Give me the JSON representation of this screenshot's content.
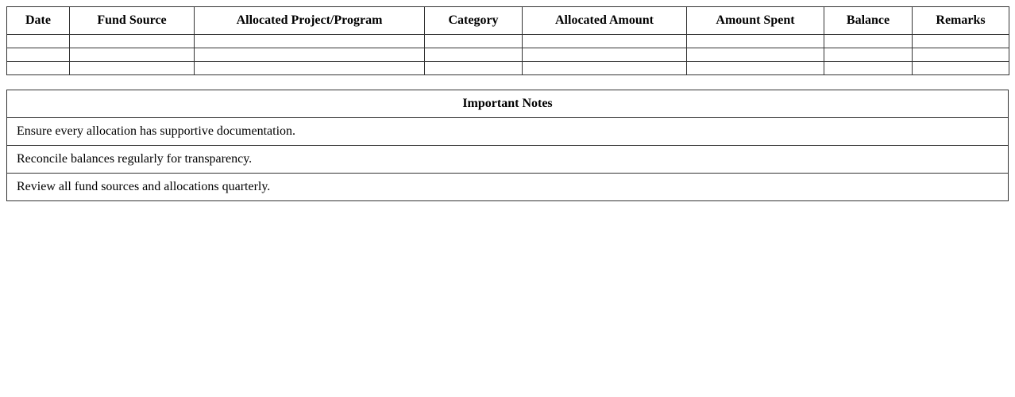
{
  "fund_table": {
    "headers": [
      "Date",
      "Fund Source",
      "Allocated Project/Program",
      "Category",
      "Allocated Amount",
      "Amount Spent",
      "Balance",
      "Remarks"
    ],
    "rows": [
      [
        "",
        "",
        "",
        "",
        "",
        "",
        "",
        ""
      ],
      [
        "",
        "",
        "",
        "",
        "",
        "",
        "",
        ""
      ],
      [
        "",
        "",
        "",
        "",
        "",
        "",
        "",
        ""
      ]
    ]
  },
  "notes": {
    "title": "Important Notes",
    "items": [
      "Ensure every allocation has supportive documentation.",
      "Reconcile balances regularly for transparency.",
      "Review all fund sources and allocations quarterly."
    ]
  }
}
